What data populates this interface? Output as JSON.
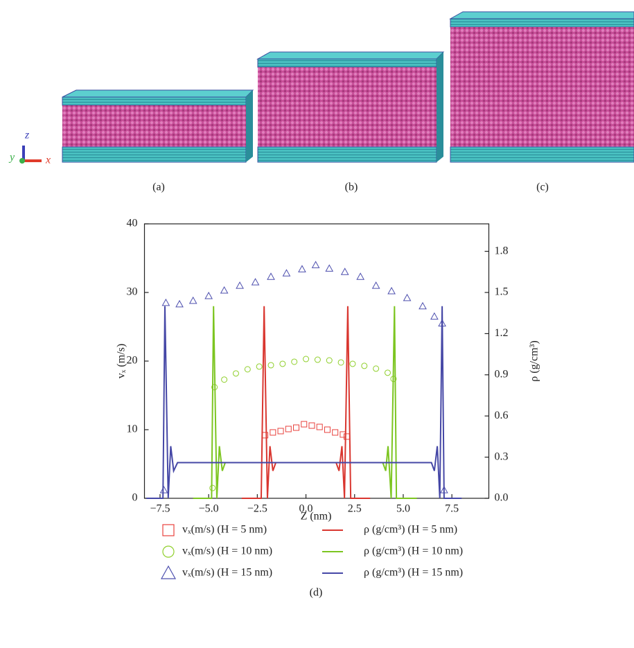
{
  "panels": [
    "(a)",
    "(b)",
    "(c)",
    "(d)"
  ],
  "triad": {
    "x": "x",
    "y": "y",
    "z": "z"
  },
  "chart_data": {
    "type": "combo",
    "xlabel": "Z (nm)",
    "ylabel": "vₓ (m/s)",
    "y2label": "ρ (g/cm³)",
    "xlim": [
      -8.3,
      9.4
    ],
    "ylim": [
      0,
      40
    ],
    "y2lim": [
      0,
      2.0
    ],
    "xticks": [
      {
        "value": -7.5,
        "label": "−7.5"
      },
      {
        "value": -5,
        "label": "−5.0"
      },
      {
        "value": -2.5,
        "label": "−2.5"
      },
      {
        "value": 0,
        "label": "0.0"
      },
      2.5,
      {
        "value": 5,
        "label": "5.0"
      },
      7.5
    ],
    "yticks": [
      0,
      10,
      20,
      30,
      40
    ],
    "y2ticks": [
      {
        "value": 0,
        "label": "0.0"
      },
      0.3,
      0.6,
      0.9,
      1.2,
      1.5,
      1.8
    ],
    "series": [
      {
        "name": "vₓ(m/s) (H = 5 nm)",
        "color": "#e8413c",
        "marker": "square",
        "x": [
          -2.1,
          -1.7,
          -1.3,
          -0.9,
          -0.5,
          -0.1,
          0.3,
          0.7,
          1.1,
          1.5,
          1.9,
          2.1
        ],
        "values": [
          9.2,
          9.6,
          9.8,
          10.1,
          10.3,
          10.8,
          10.6,
          10.4,
          10.0,
          9.6,
          9.3,
          9.0
        ]
      },
      {
        "name": "vₓ(m/s) (H = 10 nm)",
        "color": "#8fcf2a",
        "marker": "circle",
        "x": [
          -4.8,
          -4.7,
          -4.2,
          -3.6,
          -3.0,
          -2.4,
          -1.8,
          -1.2,
          -0.6,
          0,
          0.6,
          1.2,
          1.8,
          2.4,
          3.0,
          3.6,
          4.2,
          4.5
        ],
        "values": [
          1.5,
          16.2,
          17.3,
          18.2,
          18.8,
          19.2,
          19.4,
          19.6,
          19.9,
          20.3,
          20.2,
          20.1,
          19.8,
          19.6,
          19.3,
          18.9,
          18.3,
          17.4
        ]
      },
      {
        "name": "vₓ(m/s) (H = 15 nm)",
        "color": "#4d4fae",
        "marker": "triangle",
        "x": [
          -7.3,
          -7.2,
          -6.5,
          -5.8,
          -5.0,
          -4.2,
          -3.4,
          -2.6,
          -1.8,
          -1.0,
          -0.2,
          0.5,
          1.2,
          2.0,
          2.8,
          3.6,
          4.4,
          5.2,
          6.0,
          6.6,
          7.0,
          7.1
        ],
        "values": [
          1.2,
          28.5,
          28.3,
          28.8,
          29.5,
          30.3,
          31.0,
          31.5,
          32.3,
          32.8,
          33.4,
          34.0,
          33.5,
          33.0,
          32.3,
          31.0,
          30.2,
          29.2,
          28.0,
          26.5,
          25.5,
          1.2
        ]
      },
      {
        "name": "ρ (g/cm³) (H = 5 nm)",
        "color": "#d9362f",
        "axis": "y2",
        "x": [
          -3.3,
          -2.3,
          -2.15,
          -1.98,
          -1.85,
          -1.7,
          -1.55,
          1.55,
          1.7,
          1.85,
          1.98,
          2.15,
          2.3,
          3.3
        ],
        "values": [
          0,
          0,
          1.4,
          0,
          0.38,
          0.2,
          0.26,
          0.26,
          0.2,
          0.38,
          0,
          1.4,
          0,
          0
        ]
      },
      {
        "name": "ρ (g/cm³) (H = 10 nm)",
        "color": "#7cc520",
        "axis": "y2",
        "x": [
          -5.8,
          -4.85,
          -4.75,
          -4.58,
          -4.45,
          -4.3,
          -4.15,
          3.95,
          4.1,
          4.22,
          4.38,
          4.55,
          4.65,
          5.7
        ],
        "values": [
          0,
          0,
          1.4,
          0,
          0.38,
          0.2,
          0.26,
          0.26,
          0.2,
          0.38,
          0,
          1.4,
          0,
          0
        ]
      },
      {
        "name": "ρ (g/cm³) (H = 15 nm)",
        "color": "#4547a6",
        "axis": "y2",
        "x": [
          -8.2,
          -7.35,
          -7.25,
          -7.08,
          -6.95,
          -6.8,
          -6.6,
          6.45,
          6.6,
          6.75,
          6.88,
          7.0,
          7.1,
          8.0
        ],
        "values": [
          0,
          0,
          1.4,
          0,
          0.38,
          0.2,
          0.26,
          0.26,
          0.2,
          0.38,
          0,
          1.4,
          0,
          0
        ]
      }
    ]
  }
}
